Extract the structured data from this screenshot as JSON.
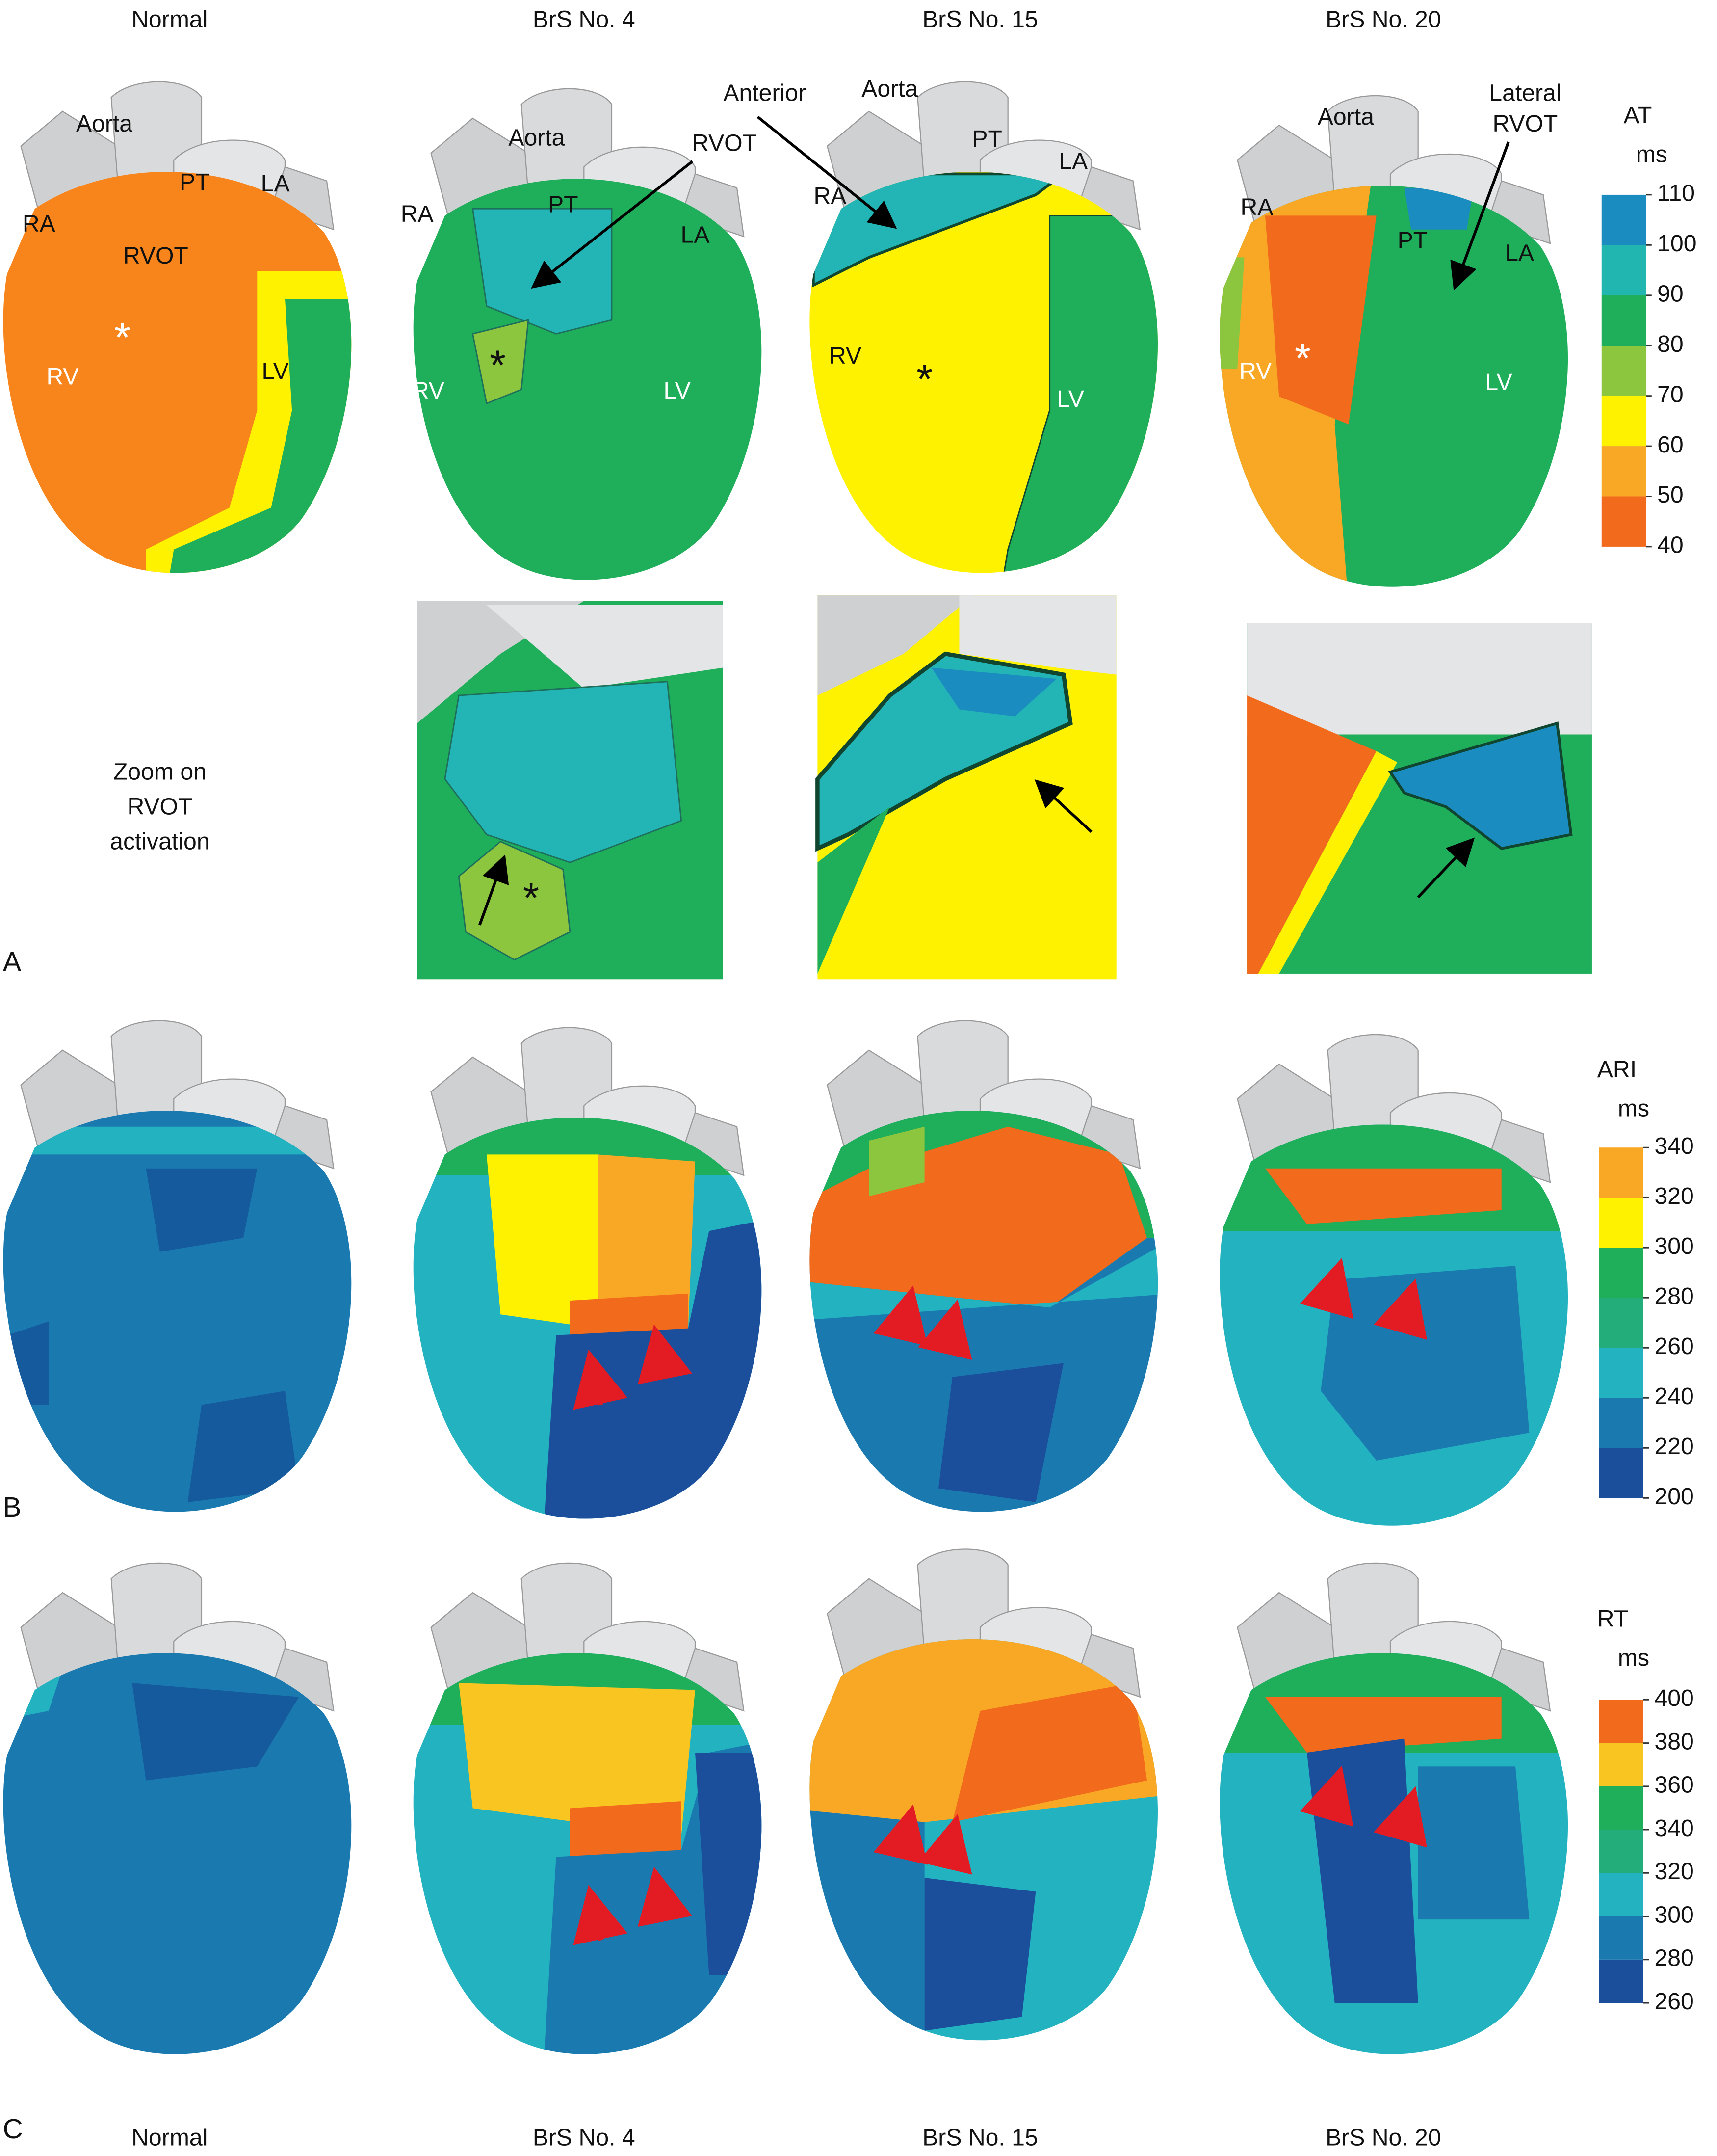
{
  "header": [
    "Normal",
    "BrS No. 4",
    "BrS No. 15",
    "BrS No. 20"
  ],
  "footer": [
    "Normal",
    "BrS No. 4",
    "BrS No. 15",
    "BrS No. 20"
  ],
  "panel_letters": [
    "A",
    "B",
    "C"
  ],
  "zoom_caption": [
    "Zoom on",
    "RVOT",
    "activation"
  ],
  "heart_labels": [
    [
      "Aorta",
      "PT",
      "LA",
      "RA",
      "RVOT",
      "RV",
      "LV",
      "*"
    ],
    [
      "Aorta",
      "PT",
      "LA",
      "RA",
      "RVOT",
      "RV",
      "LV",
      "*"
    ],
    [
      "Anterior",
      "Aorta",
      "PT",
      "LA",
      "RA",
      "RV",
      "LV",
      "*"
    ],
    [
      "Aorta",
      "Lateral",
      "RVOT",
      "PT",
      "LA",
      "RA",
      "RV",
      "LV",
      "*"
    ]
  ],
  "zoom_labels": [
    "*"
  ],
  "colorbars": [
    {
      "title": "AT",
      "unit": "ms",
      "lim": [
        40,
        110
      ],
      "ticks": [
        40,
        50,
        60,
        70,
        80,
        90,
        100,
        110
      ],
      "colors": [
        "#f26a1b",
        "#f9a825",
        "#fff200",
        "#8cc63f",
        "#1fae5a",
        "#21b7b0",
        "#1a8cbf"
      ]
    },
    {
      "title": "ARI",
      "unit": "ms",
      "lim": [
        200,
        340
      ],
      "ticks": [
        200,
        220,
        240,
        260,
        280,
        300,
        320,
        340
      ],
      "colors": [
        "#1b4f9c",
        "#1a7ab0",
        "#22b2c0",
        "#22ad7a",
        "#1fae5a",
        "#fff200",
        "#f9a825"
      ]
    },
    {
      "title": "RT",
      "unit": "ms",
      "lim": [
        260,
        400
      ],
      "ticks": [
        260,
        280,
        300,
        320,
        340,
        360,
        380,
        400
      ],
      "colors": [
        "#1b4f9c",
        "#1a7ab0",
        "#22b2c0",
        "#22ad7a",
        "#1fae5a",
        "#f9c520",
        "#f26a1b"
      ]
    }
  ]
}
